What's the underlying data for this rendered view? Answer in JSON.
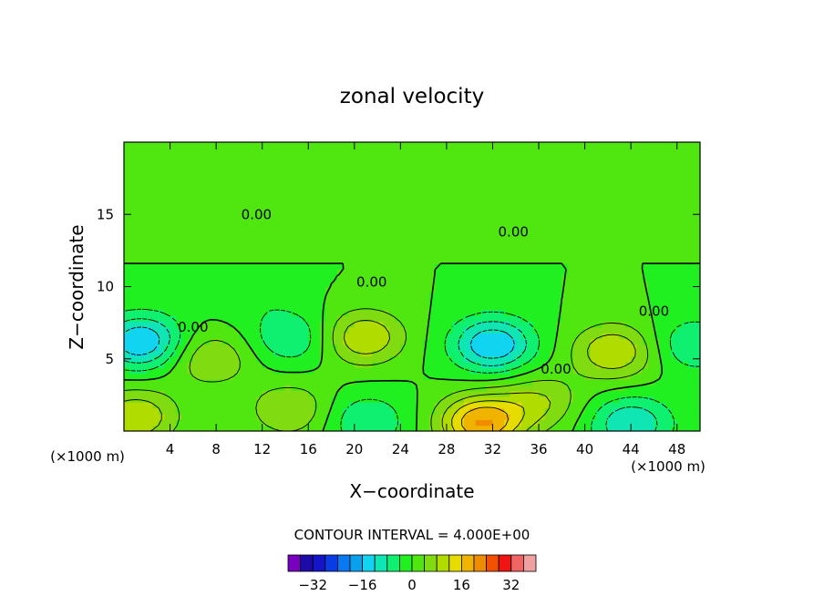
{
  "chart_data": {
    "type": "heatmap",
    "title": "zonal velocity",
    "xlabel": "X−coordinate",
    "ylabel": "Z−coordinate",
    "x_unit_left": "(×1000 m)",
    "x_unit_right": "(×1000 m)",
    "xlim": [
      0,
      50
    ],
    "ylim": [
      0,
      20
    ],
    "x_ticks": [
      4,
      8,
      12,
      16,
      20,
      24,
      28,
      32,
      36,
      40,
      44,
      48
    ],
    "y_ticks": [
      5,
      10,
      15
    ],
    "contour_interval_text": "CONTOUR INTERVAL = 4.000E+00",
    "contour_labels": [
      {
        "text": "0.00",
        "x": 11.5,
        "y": 15.0
      },
      {
        "text": "0.00",
        "x": 33.8,
        "y": 13.8
      },
      {
        "text": "0.00",
        "x": 21.5,
        "y": 10.3
      },
      {
        "text": "0.00",
        "x": 6.0,
        "y": 7.2
      },
      {
        "text": "0.00",
        "x": 46.0,
        "y": 8.3
      },
      {
        "text": "0.00",
        "x": 37.5,
        "y": 4.3
      }
    ],
    "colorbar": {
      "levels": [
        -36,
        -32,
        -28,
        -24,
        -20,
        -16,
        -12,
        -8,
        -4,
        0,
        4,
        8,
        12,
        16,
        20,
        24,
        28,
        32,
        36
      ],
      "colors": [
        "#7a00bf",
        "#1e0aa8",
        "#1414c8",
        "#0a3ce6",
        "#0a78f0",
        "#0aa0f0",
        "#10d4f0",
        "#10e6b4",
        "#10f070",
        "#20f020",
        "#50e610",
        "#80dc10",
        "#b0dc00",
        "#e6dc00",
        "#f0b400",
        "#f08c00",
        "#f05000",
        "#f01414",
        "#f06464",
        "#f0a0a0"
      ],
      "tick_values": [
        -32,
        -16,
        0,
        16,
        32
      ],
      "tick_labels": [
        "−32",
        "−16",
        "0",
        "16",
        "32"
      ]
    },
    "features": [
      {
        "kind": "min",
        "x": 1.5,
        "y": 6.2,
        "value": -16
      },
      {
        "kind": "min",
        "x": 32.0,
        "y": 6.0,
        "value": -16
      },
      {
        "kind": "min",
        "x": 14.5,
        "y": 6.5,
        "value": -8
      },
      {
        "kind": "min",
        "x": 21.0,
        "y": 0.7,
        "value": -8
      },
      {
        "kind": "min",
        "x": 44.0,
        "y": 0.5,
        "value": -12
      },
      {
        "kind": "min",
        "x": 49.5,
        "y": 6.0,
        "value": -8
      },
      {
        "kind": "min",
        "x": 11.0,
        "y": 9.9,
        "value": -4
      },
      {
        "kind": "max",
        "x": 20.8,
        "y": 6.5,
        "value": 12
      },
      {
        "kind": "max",
        "x": 31.0,
        "y": 0.6,
        "value": 20
      },
      {
        "kind": "max",
        "x": 42.5,
        "y": 5.5,
        "value": 12
      },
      {
        "kind": "max",
        "x": 1.0,
        "y": 1.0,
        "value": 12
      },
      {
        "kind": "max",
        "x": 7.5,
        "y": 5.0,
        "value": 8
      },
      {
        "kind": "max",
        "x": 36.0,
        "y": 2.0,
        "value": 8
      },
      {
        "kind": "max",
        "x": 14.5,
        "y": 1.5,
        "value": 8
      }
    ]
  }
}
